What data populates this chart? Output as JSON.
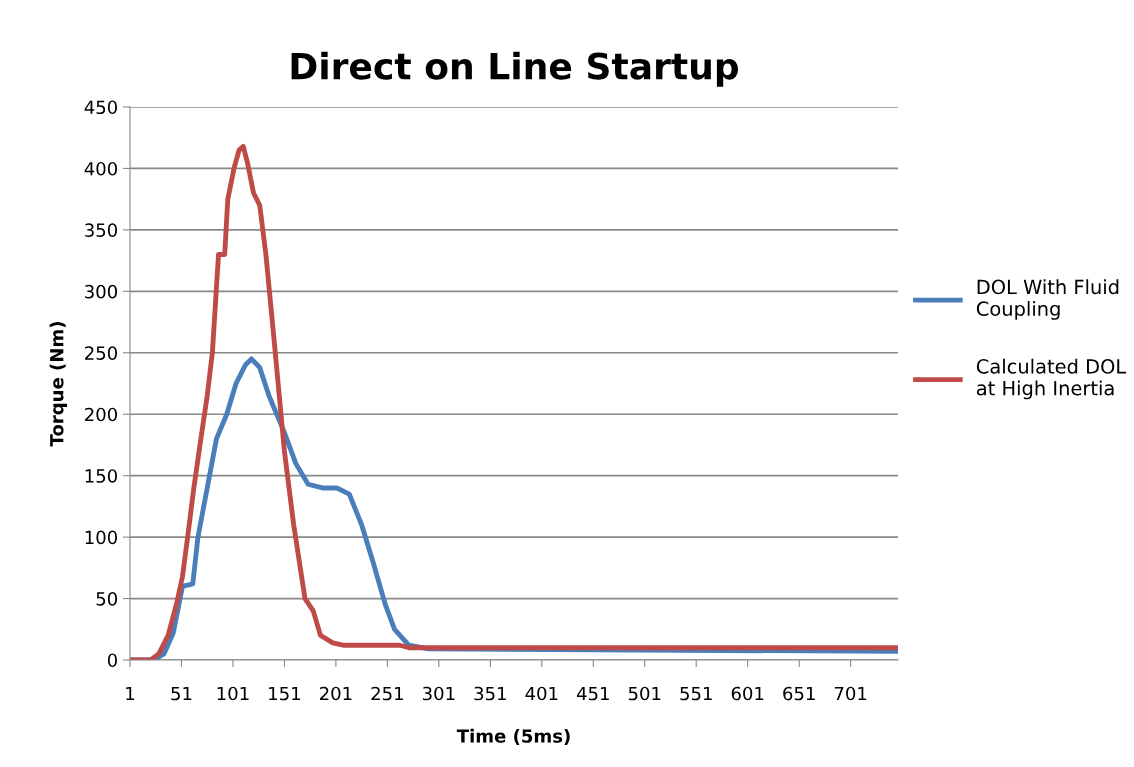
{
  "chart_data": {
    "type": "line",
    "title": "Direct on Line Startup",
    "xlabel": "Time (5ms)",
    "ylabel": "Torque (Nm)",
    "xlim": [
      1,
      747
    ],
    "xticks": [
      1,
      51,
      101,
      151,
      201,
      251,
      301,
      351,
      401,
      451,
      501,
      551,
      601,
      651,
      701
    ],
    "ylim": [
      0,
      450
    ],
    "yticks": [
      0,
      50,
      100,
      150,
      200,
      250,
      300,
      350,
      400,
      450
    ],
    "grid": "y",
    "legend": "right",
    "line_style": "solid",
    "marker": "none",
    "series": [
      {
        "name": "DOL With Fluid Coupling",
        "color": "#4a7ebb",
        "x": [
          1,
          24,
          34,
          43,
          52,
          62,
          67,
          76,
          85,
          95,
          104,
          113,
          119,
          127,
          136,
          151,
          162,
          174,
          188,
          202,
          214,
          226,
          237,
          249,
          258,
          272,
          291,
          747
        ],
        "values": [
          0,
          0,
          5,
          22,
          60,
          62,
          100,
          140,
          180,
          200,
          225,
          240,
          245,
          238,
          215,
          185,
          160,
          143,
          140,
          140,
          135,
          110,
          80,
          45,
          25,
          12,
          9,
          7
        ]
      },
      {
        "name": "Calculated DOL at High Inertia",
        "color": "#be4b48",
        "x": [
          1,
          21,
          29,
          38,
          46,
          52,
          57,
          63,
          69,
          76,
          81,
          87,
          93,
          96,
          102,
          107,
          111,
          115,
          121,
          127,
          133,
          141,
          151,
          160,
          171,
          179,
          186,
          198,
          209,
          263,
          272,
          747
        ],
        "values": [
          0,
          0,
          5,
          20,
          45,
          68,
          100,
          140,
          175,
          215,
          250,
          330,
          330,
          375,
          400,
          415,
          418,
          405,
          380,
          370,
          330,
          260,
          170,
          110,
          50,
          40,
          20,
          14,
          12,
          12,
          10,
          10
        ]
      }
    ]
  }
}
